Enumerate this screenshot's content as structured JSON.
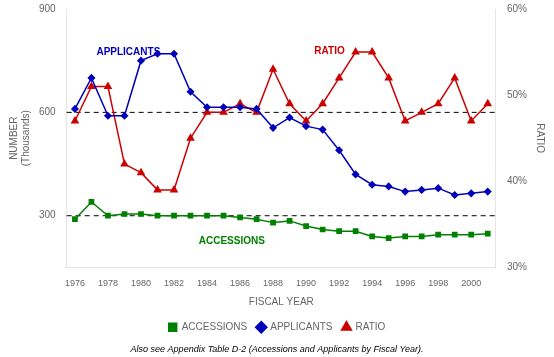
{
  "chart_data": {
    "type": "line",
    "x": [
      1976,
      1977,
      1978,
      1979,
      1980,
      1981,
      1982,
      1983,
      1984,
      1985,
      1986,
      1987,
      1988,
      1989,
      1990,
      1991,
      1992,
      1993,
      1994,
      1995,
      1996,
      1997,
      1998,
      1999,
      2000,
      2001
    ],
    "series": [
      {
        "name": "ACCESSIONS",
        "color": "#008000",
        "marker": "square",
        "line_style": "solid",
        "values": [
          290,
          340,
          300,
          305,
          305,
          300,
          300,
          300,
          300,
          300,
          295,
          290,
          280,
          285,
          270,
          260,
          255,
          255,
          240,
          235,
          240,
          240,
          245,
          245,
          245,
          248
        ]
      },
      {
        "name": "APPLICANTS",
        "color": "#0000BB",
        "marker": "diamond",
        "line_style": "solid",
        "values": [
          610,
          700,
          590,
          590,
          750,
          770,
          770,
          660,
          615,
          615,
          615,
          610,
          555,
          585,
          560,
          550,
          490,
          420,
          390,
          385,
          370,
          375,
          380,
          360,
          365,
          370
        ]
      },
      {
        "name": "RATIO",
        "color": "#CC0000",
        "marker": "triangle",
        "line_style": "solid",
        "axis": "y2",
        "values": [
          47,
          51,
          51,
          42,
          41,
          39,
          39,
          45,
          48,
          48,
          49,
          48,
          53,
          49,
          47,
          49,
          52,
          55,
          55,
          52,
          47,
          48,
          49,
          52,
          47,
          49
        ]
      }
    ],
    "x_label": "FISCAL YEAR",
    "y_label": "NUMBER\n(Thousands)",
    "y2_label": "RATIO",
    "xlim": [
      1975.5,
      2001.5
    ],
    "xticks": [
      1976,
      1978,
      1980,
      1982,
      1984,
      1986,
      1988,
      1990,
      1992,
      1994,
      1996,
      1998,
      2000
    ],
    "ylim": [
      150,
      900
    ],
    "yticks": [
      300,
      600,
      900
    ],
    "y2lim": [
      30,
      60
    ],
    "y2ticks": [
      {
        "value": 30,
        "label": "30%"
      },
      {
        "value": 40,
        "label": "40%"
      },
      {
        "value": 50,
        "label": "50%"
      },
      {
        "value": 60,
        "label": "60%"
      }
    ],
    "reference_lines": [
      300,
      600
    ],
    "annotations": [
      {
        "text": "APPLICANTS",
        "x": 1977.3,
        "y": 760,
        "color": "#0000BB"
      },
      {
        "text": "ACCESSIONS",
        "x": 1983.5,
        "y": 240,
        "color": "#008000"
      },
      {
        "text": "RATIO",
        "x": 1990.5,
        "y": 54.5,
        "color": "#CC0000",
        "axis": "y2"
      }
    ],
    "footnote": "Also see Appendix Table D-2 (Accessions and Applicants by Fiscal Year).",
    "legend": "bottom",
    "grid": false
  }
}
